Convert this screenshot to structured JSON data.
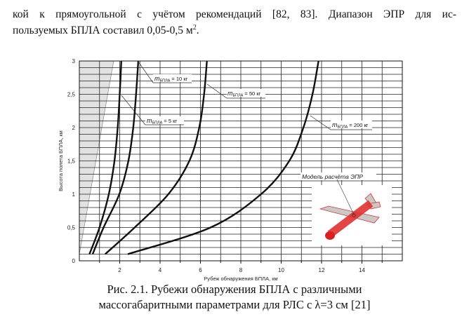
{
  "body_text": {
    "line1": "кой к прямоугольной с учётом рекомендаций [82, 83]. Диапазон ЭПР для ис-",
    "line2_prefix": "пользуемых БПЛА составил 0,05-0,5 м",
    "line2_sup": "2",
    "line2_suffix": "."
  },
  "caption": {
    "line1": "Рис. 2.1. Рубежи обнаружения БПЛА с различными",
    "line2": "массогабаритными параметрами для РЛС с λ=3 см [21]"
  },
  "chart_data": {
    "type": "line",
    "xlabel": "Рубеж обнаружения БПЛА, км",
    "ylabel": "Высота полета БПЛА, км",
    "xlim": [
      0,
      16
    ],
    "ylim": [
      0,
      3
    ],
    "grid": true,
    "x_ticks": [
      2,
      4,
      6,
      8,
      10,
      12,
      14
    ],
    "x_tick_labels": [
      "2",
      "4",
      "6",
      "8",
      "10",
      "12",
      "14"
    ],
    "y_ticks": [
      0,
      0.5,
      1,
      1.5,
      2,
      2.5,
      3
    ],
    "y_tick_labels": [
      "0",
      "0,5",
      "1",
      "1,5",
      "2",
      "2,5",
      "3"
    ],
    "series": [
      {
        "name": "m_БПЛА = 5 кг",
        "label": {
          "m": "m",
          "sub": "БПЛА",
          "rest": " = 5 кг"
        },
        "x": [
          0.5,
          1.0,
          1.46,
          1.74,
          1.9,
          2.0,
          2.08
        ],
        "y": [
          0.1,
          0.5,
          1.0,
          1.5,
          2.0,
          2.5,
          3.0
        ]
      },
      {
        "name": "m_БПЛА = 10 кг",
        "label": {
          "m": "m",
          "sub": "БПЛА",
          "rest": " = 10 кг"
        },
        "x": [
          0.66,
          1.2,
          1.98,
          2.43,
          2.67,
          2.81,
          2.92
        ],
        "y": [
          0.1,
          0.5,
          1.0,
          1.5,
          2.0,
          2.5,
          3.0
        ]
      },
      {
        "name": "m_БПЛА = 50 кг",
        "label": {
          "m": "m",
          "sub": "БПЛА",
          "rest": " = 50 кг"
        },
        "x": [
          1.28,
          2.74,
          4.41,
          5.45,
          5.94,
          6.18,
          6.32
        ],
        "y": [
          0.1,
          0.5,
          1.0,
          1.5,
          2.0,
          2.5,
          3.0
        ]
      },
      {
        "name": "m_БПЛА = 200 кг",
        "label": {
          "m": "m",
          "sub": "БПЛА",
          "rest": " = 200 кг"
        },
        "x": [
          2.4,
          6.5,
          9.0,
          10.4,
          11.1,
          11.55,
          11.85
        ],
        "y": [
          0.1,
          0.5,
          1.0,
          1.5,
          2.0,
          2.5,
          3.0
        ]
      }
    ],
    "shaded_region": {
      "x_bottom": 0.0,
      "x_top": 1.7,
      "y_bottom": 0.1,
      "y_top": 3.0
    },
    "inset_label": "Модель расчёта ЭПР"
  },
  "colors": {
    "curve": "#111111",
    "grid": "#222222",
    "shade": "#e2e2e2",
    "model": "#e03030"
  }
}
